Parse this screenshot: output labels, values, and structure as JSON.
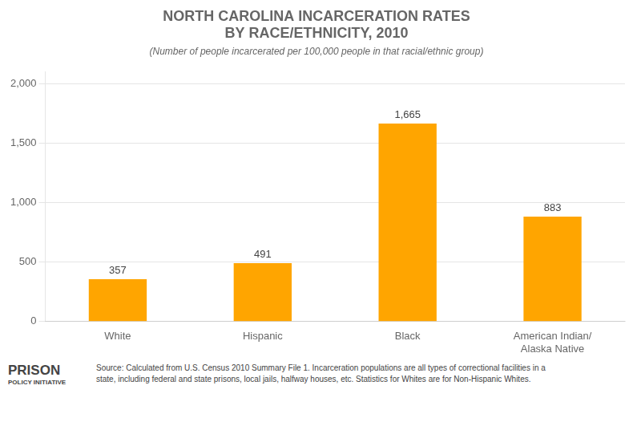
{
  "chart_data": {
    "type": "bar",
    "title": "NORTH CAROLINA INCARCERATION RATES\nBY RACE/ETHNICITY, 2010",
    "subtitle": "(Number of people incarcerated per 100,000 people in that racial/ethnic group)",
    "categories": [
      "White",
      "Hispanic",
      "Black",
      "American Indian/\nAlaska Native"
    ],
    "values": [
      357,
      491,
      1665,
      883
    ],
    "value_labels": [
      "357",
      "491",
      "1,665",
      "883"
    ],
    "data_labels": true,
    "color": "#FFA500",
    "ylim": [
      0,
      2100
    ],
    "yticks": [
      0,
      500,
      {
        "value": 1000,
        "label": "1,000"
      },
      {
        "value": 1500,
        "label": "1,500"
      },
      {
        "value": 2000,
        "label": "2,000"
      }
    ],
    "grid": true,
    "annotations": [
      "PRISON",
      "POLICY INITIATIVE",
      "Source: Calculated from U.S. Census 2010 Summary File 1. Incarceration populations are all types of correctional facilities in a\nstate, including federal and state prisons, local jails, halfway houses, etc. Statistics for Whites are for Non-Hispanic Whites."
    ]
  }
}
